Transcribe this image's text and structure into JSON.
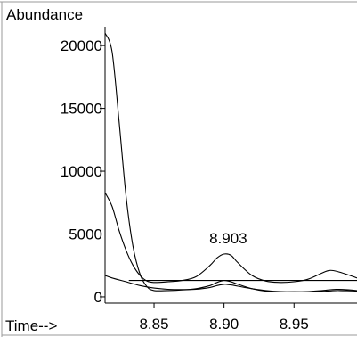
{
  "chart_data": {
    "type": "line",
    "ylabel": "Abundance",
    "xlabel": "Time-->",
    "xlim": [
      8.815,
      8.995
    ],
    "ylim": [
      -500,
      21500
    ],
    "y_ticks": [
      0,
      5000,
      10000,
      15000,
      20000
    ],
    "y_tick_labels": [
      "0",
      "5000",
      "10000",
      "15000",
      "20000"
    ],
    "x_ticks": [
      8.85,
      8.9,
      8.95
    ],
    "x_tick_labels": [
      "8.85",
      "8.90",
      "8.95"
    ],
    "annotations": [
      {
        "text": "8.903",
        "x": 8.903,
        "y": 3400
      }
    ],
    "grid": false,
    "legend": "none",
    "series": [
      {
        "x": [
          8.815,
          8.82,
          8.825,
          8.83,
          8.835,
          8.84,
          8.845,
          8.85,
          8.86,
          8.87,
          8.88,
          8.89,
          8.895,
          8.9,
          8.905,
          8.91,
          8.92,
          8.93,
          8.94,
          8.95,
          8.96,
          8.97,
          8.98,
          8.99,
          8.995
        ],
        "y": [
          21000,
          19500,
          14000,
          8000,
          4000,
          1800,
          800,
          500,
          500,
          550,
          650,
          900,
          1150,
          1300,
          1200,
          1000,
          650,
          450,
          400,
          400,
          420,
          500,
          600,
          550,
          500
        ]
      },
      {
        "x": [
          8.815,
          8.82,
          8.825,
          8.83,
          8.835,
          8.84,
          8.845,
          8.85,
          8.86,
          8.87,
          8.88,
          8.89,
          8.895,
          8.9,
          8.905,
          8.91,
          8.92,
          8.93,
          8.94,
          8.95,
          8.96,
          8.97,
          8.975,
          8.98,
          8.99,
          8.995
        ],
        "y": [
          8300,
          7200,
          5300,
          3700,
          2500,
          1700,
          1250,
          1150,
          1200,
          1300,
          1600,
          2500,
          3100,
          3400,
          3300,
          2700,
          1700,
          1250,
          1150,
          1200,
          1400,
          1900,
          2100,
          2050,
          1700,
          1500
        ]
      },
      {
        "x": [
          8.815,
          8.82,
          8.83,
          8.84,
          8.85,
          8.86,
          8.87,
          8.88,
          8.89,
          8.895,
          8.9,
          8.905,
          8.91,
          8.92,
          8.93,
          8.94,
          8.95,
          8.96,
          8.97,
          8.98,
          8.99,
          8.995
        ],
        "y": [
          1700,
          1500,
          1200,
          900,
          700,
          600,
          580,
          600,
          750,
          900,
          1000,
          950,
          850,
          650,
          500,
          420,
          400,
          400,
          430,
          500,
          480,
          450
        ]
      },
      {
        "x": [
          8.832,
          8.995
        ],
        "y": [
          1300,
          1300
        ]
      }
    ]
  }
}
